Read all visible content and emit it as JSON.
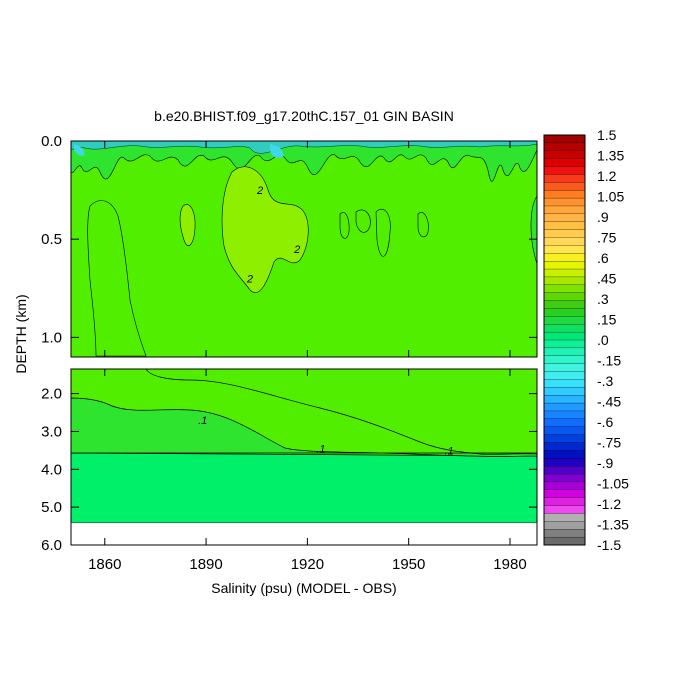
{
  "chart_data": {
    "type": "heatmap",
    "title": "b.e20.BHIST.f09_g17.20thC.157_01 GIN BASIN",
    "xlabel": "Salinity (psu) (MODEL - OBS)",
    "ylabel": "DEPTH (km)",
    "x_ticks": [
      "1860",
      "1890",
      "1920",
      "1950",
      "1980"
    ],
    "x_tick_values": [
      1860,
      1890,
      1920,
      1950,
      1980
    ],
    "xlim": [
      1850,
      1988
    ],
    "upper_panel": {
      "ylim": [
        0.0,
        1.1
      ],
      "y_ticks": [
        "0.0",
        "0.5",
        "1.0"
      ],
      "y_tick_values": [
        0.0,
        0.5,
        1.0
      ]
    },
    "lower_panel": {
      "ylim": [
        1.35,
        6.0
      ],
      "y_ticks": [
        "2.0",
        "3.0",
        "4.0",
        "5.0",
        "6.0"
      ],
      "y_tick_values": [
        2.0,
        3.0,
        4.0,
        5.0,
        6.0
      ],
      "no_data_below": 5.35
    },
    "contour_labels": [
      {
        "text": "2",
        "x": 1906,
        "y": 0.25,
        "panel": "upper"
      },
      {
        "text": "2",
        "x": 1917,
        "y": 0.55,
        "panel": "upper"
      },
      {
        "text": "2",
        "x": 1903,
        "y": 0.7,
        "panel": "upper"
      },
      {
        "text": ".1",
        "x": 1889,
        "y": 2.7,
        "panel": "lower"
      },
      {
        "text": ".1",
        "x": 1924,
        "y": 3.45,
        "panel": "lower"
      },
      {
        "text": ".1",
        "x": 1962,
        "y": 3.5,
        "panel": "lower"
      }
    ],
    "colorbar": {
      "labels": [
        "1.5",
        "1.35",
        "1.2",
        "1.05",
        ".9",
        ".75",
        ".6",
        ".45",
        ".3",
        ".15",
        ".0",
        "-.15",
        "-.3",
        "-.45",
        "-.6",
        "-.75",
        "-.9",
        "-1.05",
        "-1.2",
        "-1.35",
        "-1.5"
      ],
      "range": [
        -1.5,
        1.5
      ],
      "colors": [
        "#a00000",
        "#b40000",
        "#c80000",
        "#dc0000",
        "#ef1010",
        "#f63a1a",
        "#fb5a1e",
        "#ff7d20",
        "#ff9230",
        "#ffa63c",
        "#ffb446",
        "#ffc044",
        "#ffcc50",
        "#ffd85a",
        "#ffe650",
        "#f8f020",
        "#e6f500",
        "#c8f000",
        "#a8e800",
        "#7ee300",
        "#5fd800",
        "#40cc10",
        "#2ad020",
        "#20d840",
        "#10e060",
        "#00e878",
        "#10ee98",
        "#20f2b4",
        "#30f4cc",
        "#40f4e0",
        "#40eef0",
        "#38e0f8",
        "#30ccff",
        "#28b4ff",
        "#209cff",
        "#1884ff",
        "#106cff",
        "#0858f0",
        "#0040e0",
        "#0028d0",
        "#0010c0",
        "#2000c0",
        "#5000c8",
        "#8000d0",
        "#a800d8",
        "#d000e0",
        "#e020e0",
        "#f048f0",
        "#b0b0b0",
        "#a0a0a0",
        "#808080",
        "#6a6a6a"
      ]
    },
    "colors": {
      "main_field": "#52ee00",
      "deep_field": "#00f06a",
      "light_patch": "#8ef000",
      "mid_patch": "#2fe42f"
    }
  }
}
